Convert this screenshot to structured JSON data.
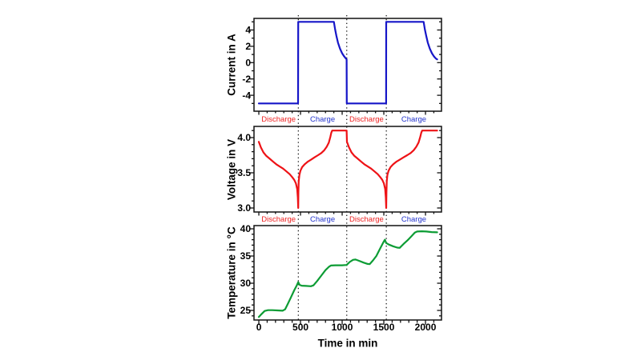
{
  "figure": {
    "background": "#ffffff",
    "frame_color": "#111111",
    "dotted_line_color": "#111111",
    "xlabel": "Time in min",
    "xlim": [
      -58,
      2192
    ],
    "x_tick_values": [
      0,
      500,
      1000,
      1500,
      2000
    ],
    "x_tick_labels": [
      "0",
      "500",
      "1000",
      "1500",
      "2000"
    ],
    "x_minor_step": 100,
    "phase_boundaries_min": [
      474,
      1055,
      1530
    ],
    "phase_segments": [
      {
        "label": "Discharge",
        "color": "#ee2222",
        "t_start": 0,
        "t_end": 474
      },
      {
        "label": "Charge",
        "color": "#2233cc",
        "t_start": 474,
        "t_end": 1055
      },
      {
        "label": "Discharge",
        "color": "#ee2222",
        "t_start": 1055,
        "t_end": 1530
      },
      {
        "label": "Charge",
        "color": "#2233cc",
        "t_start": 1530,
        "t_end": 2190
      }
    ]
  },
  "chart_data": [
    {
      "type": "line",
      "name": "current",
      "ylabel": "Current in A",
      "color": "#1616c8",
      "ylim": [
        -5.95,
        5.42
      ],
      "ytick_values": [
        4,
        2,
        0,
        -2,
        -4
      ],
      "ytick_labels": [
        "4",
        "2",
        "0",
        "-2",
        "-4"
      ],
      "y_minor_step": 1,
      "points": [
        [
          0,
          -5
        ],
        [
          471,
          -5
        ],
        [
          473,
          5
        ],
        [
          901,
          5
        ],
        [
          915,
          4.1
        ],
        [
          930,
          3.3
        ],
        [
          950,
          2.45
        ],
        [
          975,
          1.7
        ],
        [
          1000,
          1.15
        ],
        [
          1025,
          0.75
        ],
        [
          1045,
          0.5
        ],
        [
          1054,
          0.4
        ],
        [
          1055,
          -5
        ],
        [
          1528,
          -5
        ],
        [
          1529,
          5
        ],
        [
          1978,
          5
        ],
        [
          1992,
          4.1
        ],
        [
          2008,
          3.3
        ],
        [
          2028,
          2.45
        ],
        [
          2053,
          1.7
        ],
        [
          2078,
          1.15
        ],
        [
          2103,
          0.75
        ],
        [
          2125,
          0.5
        ],
        [
          2140,
          0.4
        ]
      ]
    },
    {
      "type": "line",
      "name": "voltage",
      "ylabel": "Voltage in V",
      "color": "#ee1216",
      "ylim": [
        2.943,
        4.159
      ],
      "ytick_values": [
        4.0,
        3.5,
        3.0
      ],
      "ytick_labels": [
        "4.0",
        "3.5",
        "3.0"
      ],
      "y_minor_step": 0.1,
      "points": [
        [
          0,
          3.94
        ],
        [
          25,
          3.86
        ],
        [
          55,
          3.79
        ],
        [
          90,
          3.74
        ],
        [
          130,
          3.7
        ],
        [
          170,
          3.66
        ],
        [
          210,
          3.62
        ],
        [
          250,
          3.59
        ],
        [
          290,
          3.56
        ],
        [
          330,
          3.52
        ],
        [
          370,
          3.48
        ],
        [
          400,
          3.44
        ],
        [
          425,
          3.4
        ],
        [
          445,
          3.35
        ],
        [
          460,
          3.27
        ],
        [
          468,
          3.15
        ],
        [
          473,
          3.0
        ],
        [
          475,
          3.22
        ],
        [
          479,
          3.38
        ],
        [
          487,
          3.47
        ],
        [
          500,
          3.53
        ],
        [
          520,
          3.58
        ],
        [
          550,
          3.62
        ],
        [
          590,
          3.66
        ],
        [
          630,
          3.69
        ],
        [
          670,
          3.72
        ],
        [
          710,
          3.75
        ],
        [
          750,
          3.78
        ],
        [
          785,
          3.82
        ],
        [
          815,
          3.87
        ],
        [
          840,
          3.93
        ],
        [
          858,
          4.01
        ],
        [
          870,
          4.07
        ],
        [
          880,
          4.1
        ],
        [
          1054,
          4.1
        ],
        [
          1057,
          3.94
        ],
        [
          1082,
          3.86
        ],
        [
          1112,
          3.79
        ],
        [
          1147,
          3.74
        ],
        [
          1187,
          3.7
        ],
        [
          1227,
          3.66
        ],
        [
          1267,
          3.62
        ],
        [
          1307,
          3.59
        ],
        [
          1347,
          3.56
        ],
        [
          1387,
          3.52
        ],
        [
          1427,
          3.48
        ],
        [
          1456,
          3.44
        ],
        [
          1481,
          3.4
        ],
        [
          1501,
          3.35
        ],
        [
          1516,
          3.27
        ],
        [
          1524,
          3.15
        ],
        [
          1529,
          3.0
        ],
        [
          1531,
          3.22
        ],
        [
          1535,
          3.38
        ],
        [
          1543,
          3.47
        ],
        [
          1557,
          3.53
        ],
        [
          1580,
          3.58
        ],
        [
          1612,
          3.62
        ],
        [
          1654,
          3.66
        ],
        [
          1696,
          3.69
        ],
        [
          1738,
          3.72
        ],
        [
          1780,
          3.75
        ],
        [
          1822,
          3.78
        ],
        [
          1858,
          3.82
        ],
        [
          1890,
          3.87
        ],
        [
          1917,
          3.93
        ],
        [
          1937,
          4.01
        ],
        [
          1950,
          4.07
        ],
        [
          1960,
          4.1
        ],
        [
          2140,
          4.1
        ]
      ]
    },
    {
      "type": "line",
      "name": "temperature",
      "ylabel": "Temperature in °C",
      "color": "#0c9c34",
      "ylim": [
        23.24,
        40.59
      ],
      "ytick_values": [
        40,
        35,
        30,
        25
      ],
      "ytick_labels": [
        "40",
        "35",
        "30",
        "25"
      ],
      "y_minor_step": 1,
      "points": [
        [
          0,
          23.8
        ],
        [
          30,
          24.3
        ],
        [
          70,
          24.9
        ],
        [
          110,
          25.05
        ],
        [
          160,
          25.05
        ],
        [
          220,
          25.0
        ],
        [
          285,
          24.95
        ],
        [
          315,
          25.2
        ],
        [
          345,
          26.1
        ],
        [
          385,
          27.4
        ],
        [
          425,
          28.7
        ],
        [
          455,
          29.6
        ],
        [
          473,
          30.2
        ],
        [
          490,
          29.7
        ],
        [
          515,
          29.55
        ],
        [
          565,
          29.5
        ],
        [
          625,
          29.45
        ],
        [
          655,
          29.6
        ],
        [
          700,
          30.4
        ],
        [
          750,
          31.4
        ],
        [
          800,
          32.4
        ],
        [
          840,
          33.0
        ],
        [
          865,
          33.25
        ],
        [
          920,
          33.3
        ],
        [
          1000,
          33.3
        ],
        [
          1054,
          33.35
        ],
        [
          1090,
          33.9
        ],
        [
          1130,
          34.3
        ],
        [
          1160,
          34.35
        ],
        [
          1205,
          34.1
        ],
        [
          1255,
          33.8
        ],
        [
          1305,
          33.55
        ],
        [
          1330,
          33.5
        ],
        [
          1370,
          34.2
        ],
        [
          1410,
          35.0
        ],
        [
          1450,
          36.2
        ],
        [
          1490,
          37.4
        ],
        [
          1513,
          38.0
        ],
        [
          1528,
          37.4
        ],
        [
          1560,
          37.1
        ],
        [
          1610,
          36.8
        ],
        [
          1660,
          36.55
        ],
        [
          1690,
          36.5
        ],
        [
          1735,
          37.2
        ],
        [
          1785,
          37.9
        ],
        [
          1835,
          38.7
        ],
        [
          1872,
          39.3
        ],
        [
          1900,
          39.5
        ],
        [
          1955,
          39.55
        ],
        [
          2010,
          39.5
        ],
        [
          2075,
          39.4
        ],
        [
          2140,
          39.35
        ]
      ]
    }
  ]
}
